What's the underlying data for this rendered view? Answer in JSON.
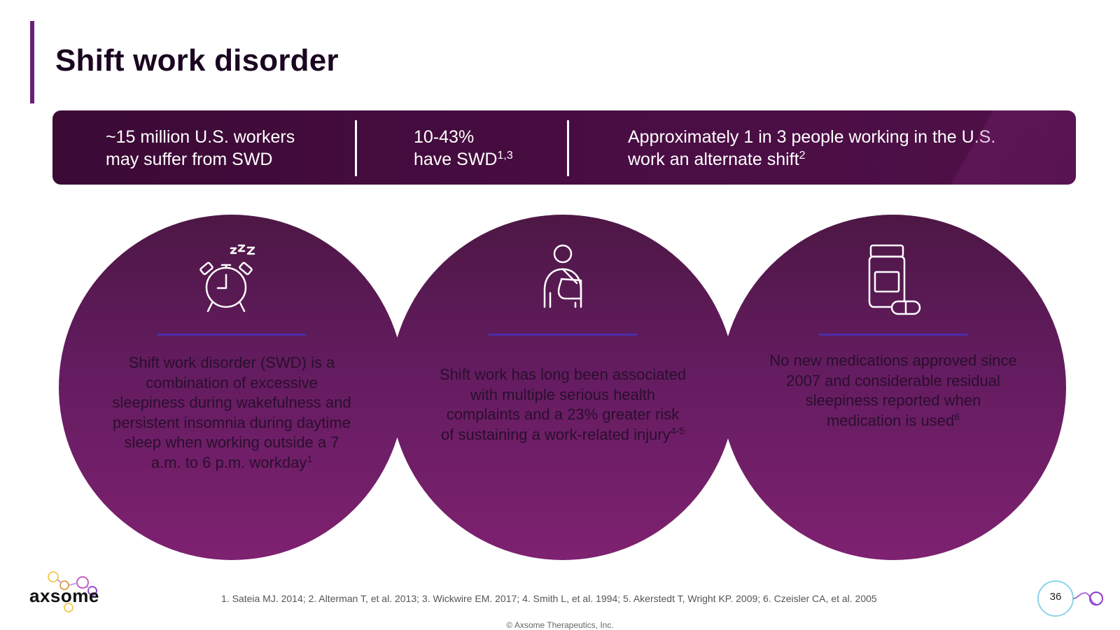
{
  "slide": {
    "title": "Shift work disorder",
    "page_number": "36",
    "accent_color": "#6b1f7a"
  },
  "stats": [
    {
      "line1": "~15 million U.S. workers",
      "line2": "may suffer from SWD",
      "sup": ""
    },
    {
      "line1": "10-43%",
      "line2": "have SWD",
      "sup": "1,3"
    },
    {
      "line1": "Approximately 1 in 3 people working in the U.S.",
      "line2": "work an alternate shift",
      "sup": "2"
    }
  ],
  "circles": [
    {
      "icon": "alarm-clock-sleep-icon",
      "text": "Shift work disorder (SWD) is a combination of excessive sleepiness during wakefulness and persistent insomnia during daytime sleep when working outside a 7 a.m. to 6 p.m. workday",
      "sup": "1"
    },
    {
      "icon": "injured-person-sling-icon",
      "text": "Shift work has long been associated with multiple serious health complaints and a 23% greater risk of sustaining a work-related injury",
      "sup": "4-5"
    },
    {
      "icon": "medicine-bottle-pill-icon",
      "text": "No new medications approved since 2007 and considerable residual sleepiness reported when medication is used",
      "sup": "6"
    }
  ],
  "footer": {
    "references": "1. Sateia MJ. 2014; 2. Alterman T, et al. 2013; 3. Wickwire EM. 2017; 4. Smith L, et al. 1994; 5. Akerstedt T, Wright KP. 2009; 6. Czeisler CA, et al. 2005",
    "copyright": "© Axsome Therapeutics, Inc.",
    "logo_text": "axsome"
  }
}
